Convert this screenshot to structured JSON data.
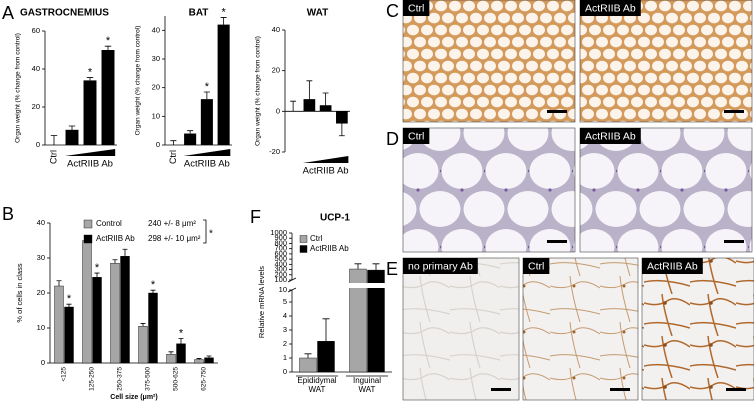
{
  "chart_data": [
    {
      "type": "bar",
      "panel": "A",
      "title": "GASTROCNEMIUS",
      "ylabel": "Organ weight (% change from control)",
      "categories": [
        "Ctrl",
        null,
        null,
        null
      ],
      "group_label": "ActRIIB Ab",
      "values": [
        0,
        8,
        34,
        50
      ],
      "errors": [
        5,
        2,
        1.5,
        2
      ],
      "significance": [
        null,
        null,
        "*",
        "*"
      ],
      "color": "#000000",
      "ylim": [
        0,
        60
      ],
      "yticks": [
        0,
        20,
        40,
        60
      ]
    },
    {
      "type": "bar",
      "title": "BAT",
      "ylabel": "Organ weight (% change from control)",
      "categories": [
        "Ctrl",
        null,
        null,
        null
      ],
      "group_label": "ActRIIB Ab",
      "values": [
        0,
        4,
        16,
        42
      ],
      "errors": [
        1.5,
        1,
        2.5,
        2.5
      ],
      "significance": [
        null,
        null,
        "*",
        "*"
      ],
      "color": "#000000",
      "ylim": [
        0,
        45
      ],
      "yticks": [
        0,
        10,
        20,
        30,
        40
      ]
    },
    {
      "type": "bar",
      "title": "WAT",
      "ylabel": "Organ weight (% change from control)",
      "categories": [
        null,
        null,
        null,
        null
      ],
      "group_label": "ActRIIB Ab",
      "values": [
        0,
        6,
        3,
        -6
      ],
      "errors": [
        5,
        9,
        6,
        6
      ],
      "color": "#000000",
      "ylim": [
        -20,
        40
      ],
      "yticks": [
        -20,
        0,
        20,
        40
      ]
    },
    {
      "type": "grouped_bar",
      "panel": "B",
      "ylabel": "% of cells in class",
      "xlabel": "Cell size (μm²)",
      "categories": [
        "<125",
        "125-250",
        "250-375",
        "375-500",
        "500-625",
        "625-750"
      ],
      "series": [
        {
          "name": "Control",
          "color": "#a6a6a6",
          "values": [
            22,
            35,
            28.5,
            10.5,
            2.5,
            1
          ],
          "errors": [
            1.5,
            1,
            1,
            0.8,
            0.7,
            0.3
          ],
          "stat": "240 +/- 8 μm²"
        },
        {
          "name": "ActRIIB Ab",
          "color": "#000000",
          "values": [
            16,
            24.5,
            30.5,
            20,
            5.5,
            1.5
          ],
          "errors": [
            0.8,
            1.2,
            2,
            0.8,
            1.5,
            0.5
          ],
          "stat": "298 +/- 10 μm²",
          "significance": [
            "*",
            "*",
            null,
            "*",
            "*",
            null
          ]
        }
      ],
      "comparison": "*",
      "ylim": [
        0,
        40
      ],
      "yticks": [
        0,
        10,
        20,
        30,
        40
      ]
    },
    {
      "type": "broken_bar",
      "panel": "F",
      "title": "UCP-1",
      "ylabel": "Relative mRNA levels",
      "categories": [
        "Epididymal WAT",
        "Inguinal WAT"
      ],
      "series": [
        {
          "name": "Ctrl",
          "color": "#a6a6a6",
          "values": [
            1,
            310
          ],
          "errors": [
            0.3,
            100
          ]
        },
        {
          "name": "ActRIIB Ab",
          "color": "#000000",
          "values": [
            2.2,
            290
          ],
          "errors": [
            1.6,
            120
          ]
        }
      ],
      "ysegments": [
        [
          0,
          5
        ],
        [
          5,
          10
        ],
        [
          100,
          1000
        ]
      ],
      "yticks": [
        0,
        1,
        2,
        3,
        4,
        5,
        10,
        100,
        200,
        300,
        400,
        500,
        600,
        700,
        800,
        900,
        1000
      ]
    }
  ],
  "micrographs": [
    {
      "panel": "C",
      "images": [
        "Ctrl",
        "ActRIIB Ab"
      ]
    },
    {
      "panel": "D",
      "images": [
        "Ctrl",
        "ActRIIB Ab"
      ]
    },
    {
      "panel": "E",
      "images": [
        "no primary Ab",
        "Ctrl",
        "ActRIIB Ab"
      ]
    }
  ]
}
